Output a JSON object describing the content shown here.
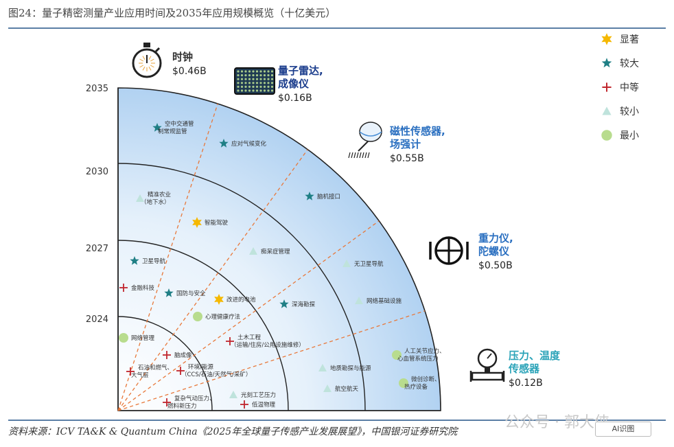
{
  "title": "图24：量子精密测量产业应用时间及2035年应用规模概览（十亿美元）",
  "source": "资料来源：ICV TA&K & Quantum China《2025年全球量子传感产业发展展望》，中国银河证券研究院",
  "watermark": "公众号 · 郭大侠",
  "ai_badge": "AI识图",
  "years": [
    "2024",
    "2027",
    "2030",
    "2035"
  ],
  "legend": [
    {
      "label": "显著",
      "symbol": "star6",
      "color": "#f5b800"
    },
    {
      "label": "较大",
      "symbol": "star5",
      "color": "#1f7f85"
    },
    {
      "label": "中等",
      "symbol": "cross",
      "color": "#c0252c"
    },
    {
      "label": "较小",
      "symbol": "triangle",
      "color": "#bfe3dc"
    },
    {
      "label": "最小",
      "symbol": "circle",
      "color": "#b8dc8e"
    }
  ],
  "categories": [
    {
      "name_lines": [
        "时钟"
      ],
      "value": "$0.46B",
      "icon": "stopwatch-icon",
      "color": "#333333"
    },
    {
      "name_lines": [
        "量子雷达,",
        "成像仪"
      ],
      "value": "$0.16B",
      "icon": "imager-icon",
      "color": "#1a3c8c"
    },
    {
      "name_lines": [
        "磁性传感器,",
        "场强计"
      ],
      "value": "$0.55B",
      "icon": "sensor-icon",
      "color": "#2a6fc0"
    },
    {
      "name_lines": [
        "重力仪,",
        "陀螺仪"
      ],
      "value": "$0.50B",
      "icon": "gyroscope-icon",
      "color": "#2a6fc0"
    },
    {
      "name_lines": [
        "压力、温度",
        "传感器"
      ],
      "value": "$0.12B",
      "icon": "gauge-icon",
      "color": "#2aa3b8"
    }
  ],
  "applications": [
    {
      "lines": [
        "空中交通管",
        "制常规监管"
      ],
      "symbol": "star5"
    },
    {
      "lines": [
        "应对气候变化"
      ],
      "symbol": "star5"
    },
    {
      "lines": [
        "精准农业",
        "（地下水）"
      ],
      "symbol": "triangle"
    },
    {
      "lines": [
        "脑机接口"
      ],
      "symbol": "star5"
    },
    {
      "lines": [
        "智能驾驶"
      ],
      "symbol": "star6"
    },
    {
      "lines": [
        "痴呆症管理"
      ],
      "symbol": "triangle"
    },
    {
      "lines": [
        "卫星导航"
      ],
      "symbol": "star5"
    },
    {
      "lines": [
        "无卫星导航"
      ],
      "symbol": "triangle"
    },
    {
      "lines": [
        "金融科技"
      ],
      "symbol": "cross"
    },
    {
      "lines": [
        "国防与安全"
      ],
      "symbol": "star5"
    },
    {
      "lines": [
        "改进的电池"
      ],
      "symbol": "star6"
    },
    {
      "lines": [
        "深海勘探"
      ],
      "symbol": "star5"
    },
    {
      "lines": [
        "网络基础设施"
      ],
      "symbol": "triangle"
    },
    {
      "lines": [
        "心理健康疗法"
      ],
      "symbol": "circle"
    },
    {
      "lines": [
        "网络管理"
      ],
      "symbol": "circle"
    },
    {
      "lines": [
        "土木工程",
        "（运输/住房/公用设施维修）"
      ],
      "symbol": "cross"
    },
    {
      "lines": [
        "脑成像"
      ],
      "symbol": "cross"
    },
    {
      "lines": [
        "人工关节应力、",
        "心血管系统压力"
      ],
      "symbol": "circle"
    },
    {
      "lines": [
        "石油和燃气、",
        "大气层"
      ],
      "symbol": "cross"
    },
    {
      "lines": [
        "环境/能源",
        "（CCS/石油/天然气/采矿）"
      ],
      "symbol": "cross"
    },
    {
      "lines": [
        "地质勘探与能源"
      ],
      "symbol": "triangle"
    },
    {
      "lines": [
        "微创诊断、",
        "热疗设备"
      ],
      "symbol": "circle"
    },
    {
      "lines": [
        "航空航天"
      ],
      "symbol": "triangle"
    },
    {
      "lines": [
        "光刻工艺压力"
      ],
      "symbol": "triangle"
    },
    {
      "lines": [
        "复杂气动压力、",
        "燃料新压力"
      ],
      "symbol": "cross"
    },
    {
      "lines": [
        "低温物理"
      ],
      "symbol": "cross"
    }
  ]
}
